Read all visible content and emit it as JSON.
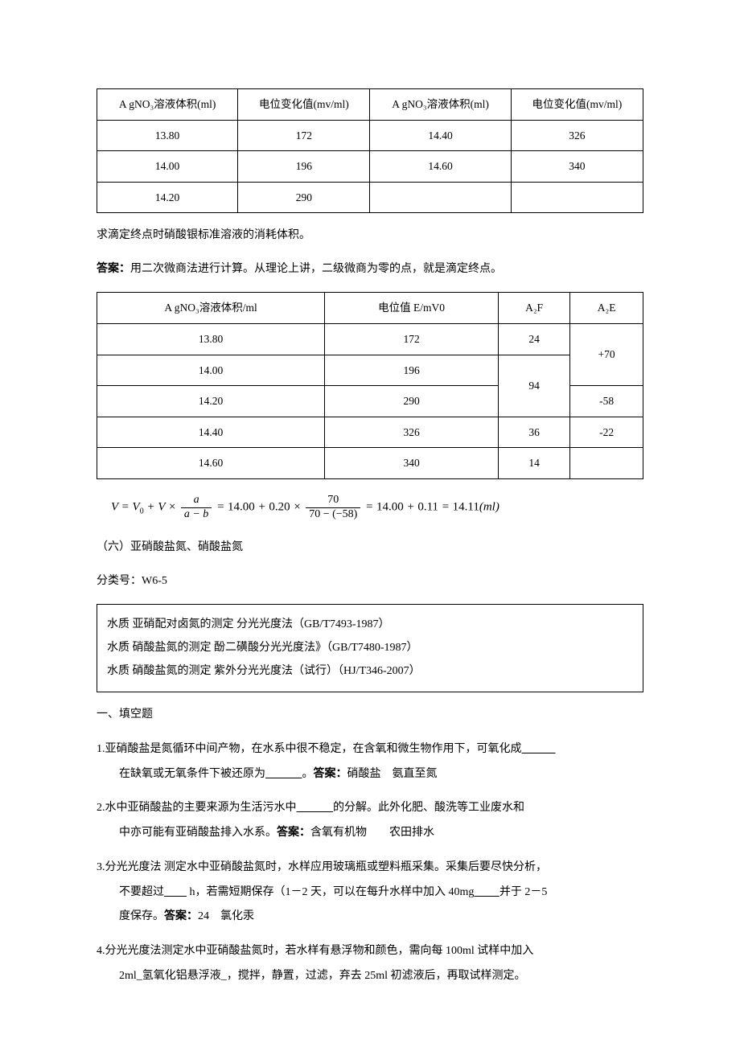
{
  "table1": {
    "headers": [
      "A gNO₃溶液体积(ml)",
      "电位变化值(mv/ml)",
      "A gNO₃溶液体积(ml)",
      "电位变化值(mv/ml)"
    ],
    "rows": [
      [
        "13.80",
        "172",
        "14.40",
        "326"
      ],
      [
        "14.00",
        "196",
        "14.60",
        "340"
      ],
      [
        "14.20",
        "290",
        "",
        ""
      ]
    ]
  },
  "line1": "求滴定终点时硝酸银标准溶液的消耗体积。",
  "line2_label": "答案：",
  "line2_text": "用二次微商法进行计算。从理论上讲，二级微商为零的点，就是滴定终点。",
  "table2": {
    "headers": [
      "A gNO₃溶液体积/ml",
      "电位值 E/mV0",
      "A₂F",
      "A₂E"
    ],
    "rows_data": {
      "r1c1": "13.80",
      "r1c2": "172",
      "r1c3": "24",
      "r2c1": "14.00",
      "r2c2": "196",
      "r3c1": "14.20",
      "r3c2": "290",
      "r4c1": "14.40",
      "r4c2": "326",
      "r4c3": "36",
      "r4c4": "-22",
      "r5c1": "14.60",
      "r5c2": "340",
      "r5c3": "14",
      "merge23c3": "94",
      "merge12c4": "+70",
      "r3c4": "-58"
    }
  },
  "formula": {
    "lhs_v": "V",
    "eq": "=",
    "v0": "V",
    "v0sub": "0",
    "plus": "+",
    "vmul": "V",
    "times": "×",
    "frac1_num": "a",
    "frac1_den": "a − b",
    "val1": "14.00",
    "val2": "0.20",
    "frac2_num": "70",
    "frac2_den": "70 − (−58)",
    "val3": "14.00",
    "val4": "0.11",
    "val5": "14.11",
    "unit": "(ml)"
  },
  "section6": "（六）亚硝酸盐氮、硝酸盐氮",
  "class_label": "分类号：W6-5",
  "box_lines": [
    "水质 亚硝配对卤氮的测定 分光光度法（GB/T7493-1987）",
    "水质 硝酸盐氮的测定 酚二磺酸分光光度法》（GB/T7480-1987）",
    "水质 硝酸盐氮的测定 紫外分光光度法（试行）（HJ/T346-2007）"
  ],
  "fill_title": "一、填空题",
  "q1_a": "1.亚硝酸盐是氮循环中间产物，在水系中很不稳定，在含氧和微生物作用下，可氧化成",
  "q1_blank1": "　　　",
  "q1_b": "在缺氧或无氧条件下被还原为",
  "q1_blank2": "　　　 ",
  "q1_c": "。",
  "q1_ans_label": "答案：",
  "q1_ans": "硝酸盐　氨直至氮",
  "q2_a": "2.水中亚硝酸盐的主要来源为生活污水中",
  "q2_blank": "　　　 ",
  "q2_b": " 的分解。此外化肥、酸洗等工业废水和",
  "q2_c": "中亦可能有亚硝酸盐排入水系。",
  "q2_ans_label": "答案：",
  "q2_ans": "含氧有机物　　农田排水",
  "q3_a": "3.分光光度法 测定水中亚硝酸盐氮时，水样应用玻璃瓶或塑料瓶采集。采集后要尽快分析，",
  "q3_b": "不要超过",
  "q3_blank1": "　　",
  "q3_c": " h，若需短期保存（1－2 天，可以在每升水样中加入 40mg",
  "q3_blank2": "　　 ",
  "q3_d": " 并于 2－5",
  "q3_e": "度保存。",
  "q3_ans_label": "答案：",
  "q3_ans": "24　氯化汞",
  "q4_a": "4.分光光度法测定水中亚硝酸盐氮时，若水样有悬浮物和颜色，需向每 100ml 试样中加入",
  "q4_b": "2ml",
  "q4_u": "_氢氧化铝悬浮液_",
  "q4_c": "，搅拌，静置，过滤，弃去 25ml 初滤液后，再取试样测定。"
}
